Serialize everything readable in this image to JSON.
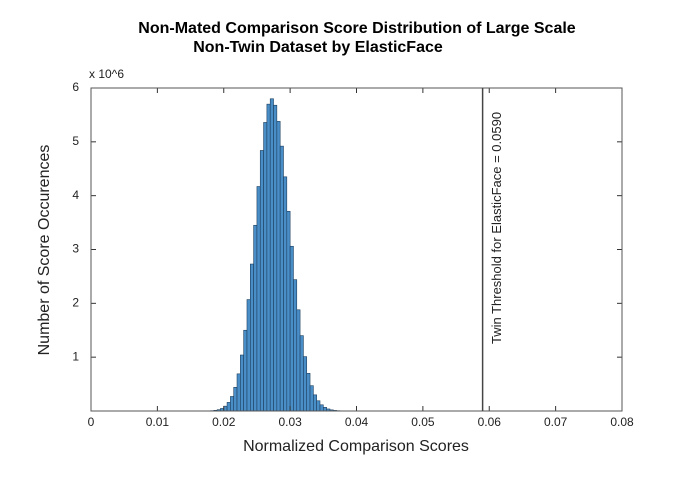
{
  "chart_data": {
    "type": "histogram",
    "title": [
      "Non-Mated Comparison Score Distribution of Large Scale",
      "Non-Twin Dataset by ElasticFace"
    ],
    "x_label": "Normalized Comparison Scores",
    "y_label": "Number of Score Occurences",
    "y_multiplier": "x 10^6",
    "bins": [
      0.018,
      0.0185,
      0.019,
      0.0195,
      0.02,
      0.0205,
      0.021,
      0.0215,
      0.022,
      0.0225,
      0.023,
      0.0235,
      0.024,
      0.0245,
      0.025,
      0.0255,
      0.026,
      0.0265,
      0.027,
      0.0275,
      0.028,
      0.0285,
      0.029,
      0.0295,
      0.03,
      0.0305,
      0.031,
      0.0315,
      0.032,
      0.0325,
      0.033,
      0.0335,
      0.034,
      0.0345,
      0.035,
      0.0355,
      0.036,
      0.0365,
      0.037,
      0.0375,
      0.038
    ],
    "values": [
      0.006,
      0.012,
      0.024,
      0.047,
      0.09,
      0.16,
      0.27,
      0.44,
      0.69,
      1.04,
      1.5,
      2.07,
      2.73,
      3.45,
      4.17,
      4.84,
      5.36,
      5.7,
      5.8,
      5.68,
      5.38,
      4.92,
      4.35,
      3.71,
      3.06,
      2.44,
      1.88,
      1.4,
      1.01,
      0.7,
      0.47,
      0.3,
      0.19,
      0.115,
      0.068,
      0.038,
      0.021,
      0.011,
      0.006,
      0.003
    ],
    "color": "#4a8ec8",
    "edge_color": "#1d3f5e",
    "xlim": [
      0,
      0.08
    ],
    "xticks": [
      0,
      0.01,
      0.02,
      0.03,
      0.04,
      0.05,
      0.06,
      0.07,
      0.08
    ],
    "ylim": [
      0,
      6
    ],
    "yticks": [
      1,
      2,
      3,
      4,
      5,
      6
    ],
    "threshold": {
      "x": 0.059,
      "label": "Twin Threshold for ElasticFace = 0.0590",
      "color": "#444444"
    }
  }
}
